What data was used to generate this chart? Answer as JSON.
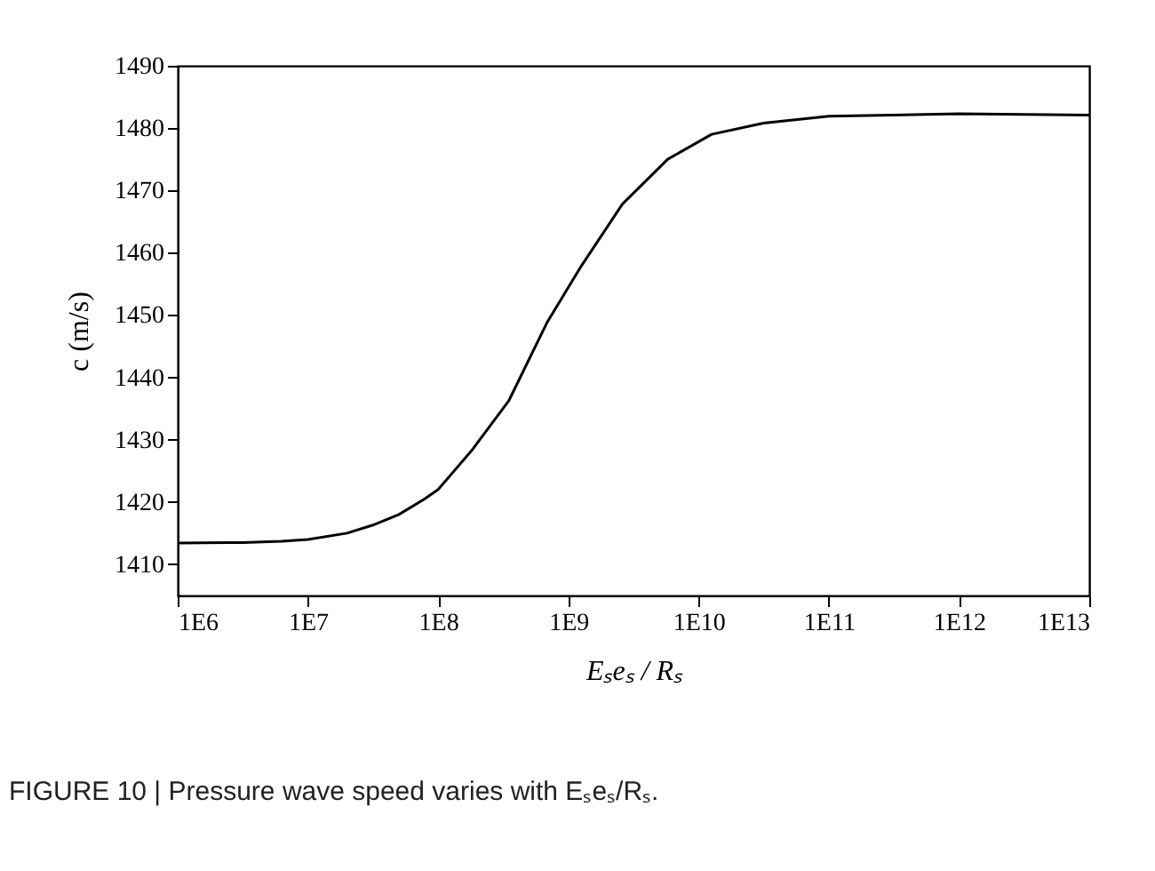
{
  "chart_data": {
    "type": "line",
    "xlabel": "Eₛeₛ / Rₛ",
    "ylabel": "c (m/s)",
    "x": [
      1000000,
      3160000,
      6300000,
      10000000,
      20000000,
      31600000,
      50000000,
      79000000,
      100000000,
      180000000,
      350000000,
      690000000,
      1260000000,
      2600000000,
      5800000000,
      12600000000,
      31600000000,
      100000000000,
      1000000000000,
      10000000000000
    ],
    "series": [
      {
        "color": "#000000",
        "values": [
          1413.4,
          1413.5,
          1413.7,
          1414.0,
          1415.0,
          1416.3,
          1418.0,
          1420.5,
          1422.0,
          1428.2,
          1436.3,
          1448.9,
          1457.9,
          1467.8,
          1475.0,
          1479.0,
          1480.8,
          1481.9,
          1482.3,
          1482.1
        ]
      }
    ],
    "log": "x",
    "xlim": [
      1000000,
      10000000000000
    ],
    "xticks": [
      {
        "value": 1000000,
        "label": "1E6"
      },
      {
        "value": 10000000,
        "label": "1E7"
      },
      {
        "value": 100000000,
        "label": "1E8"
      },
      {
        "value": 1000000000,
        "label": "1E9"
      },
      {
        "value": 10000000000,
        "label": "1E10"
      },
      {
        "value": 100000000000,
        "label": "1E11"
      },
      {
        "value": 1000000000000,
        "label": "1E12"
      },
      {
        "value": 10000000000000,
        "label": "1E13"
      }
    ],
    "ylim": [
      1405,
      1490
    ],
    "yticks": [
      1410,
      1420,
      1430,
      1440,
      1450,
      1460,
      1470,
      1480,
      1490
    ],
    "grid": false,
    "line_style": "solid",
    "annotations": [
      "FIGURE 10 | Pressure wave speed varies with Eₛeₛ/Rₛ."
    ]
  }
}
